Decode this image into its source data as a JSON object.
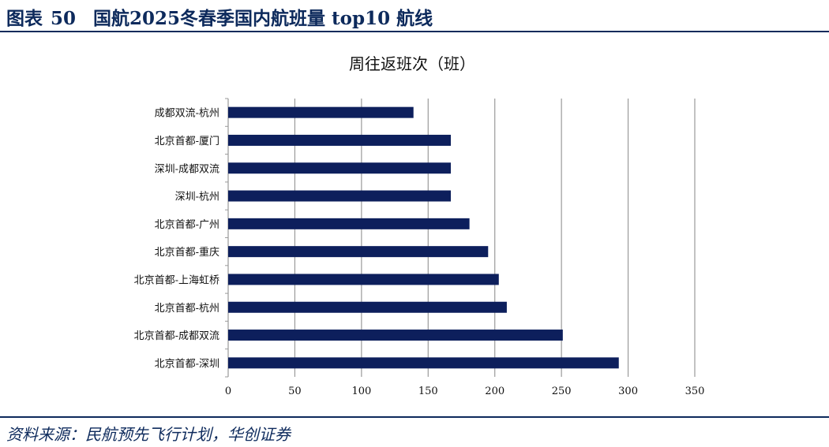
{
  "header": {
    "figure_label": "图表",
    "figure_number": "50",
    "title": "国航2025冬春季国内航班量 top10 航线"
  },
  "source": "资料来源：民航预先飞行计划，华创证券",
  "chart_data": {
    "type": "bar",
    "orientation": "horizontal",
    "title": "周往返班次（班）",
    "categories": [
      "成都双流-杭州",
      "北京首都-厦门",
      "深圳-成都双流",
      "深圳-杭州",
      "北京首都-广州",
      "北京首都-重庆",
      "北京首都-上海虹桥",
      "北京首都-杭州",
      "北京首都-成都双流",
      "北京首都-深圳"
    ],
    "values": [
      139,
      167,
      167,
      167,
      181,
      195,
      203,
      209,
      251,
      293
    ],
    "xlim": [
      0,
      350
    ],
    "xticks": [
      "0",
      "50",
      "100",
      "150",
      "200",
      "250",
      "300",
      "350"
    ],
    "xlabel": "",
    "ylabel": "",
    "grid": true,
    "bar_color": "#0d1f5c",
    "grid_color": "#9a9a9a",
    "accent_color": "#0d2a5c"
  }
}
